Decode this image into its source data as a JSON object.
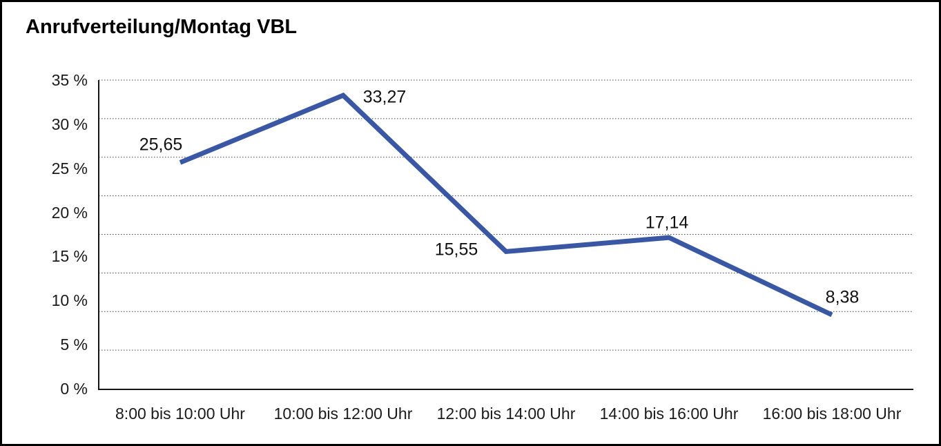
{
  "page": {
    "background": "#ffffff",
    "frame_border_color": "#000000"
  },
  "chart_data": {
    "type": "line",
    "title": "Anrufverteilung/Montag VBL",
    "categories": [
      "8:00 bis 10:00 Uhr",
      "10:00 bis 12:00 Uhr",
      "12:00 bis 14:00 Uhr",
      "14:00 bis 16:00 Uhr",
      "16:00 bis 18:00 Uhr"
    ],
    "values": [
      25.65,
      33.27,
      15.55,
      17.14,
      8.38
    ],
    "data_labels": [
      "25,65",
      "33,27",
      "15,55",
      "17,14",
      "8,38"
    ],
    "xlabel": "",
    "ylabel": "",
    "ylim": [
      0,
      35
    ],
    "y_ticks": [
      {
        "label": "35 %",
        "value": 35
      },
      {
        "label": "30 %",
        "value": 30
      },
      {
        "label": "25 %",
        "value": 25
      },
      {
        "label": "20 %",
        "value": 20
      },
      {
        "label": "15 %",
        "value": 15
      },
      {
        "label": "10 %",
        "value": 10
      },
      {
        "label": "5 %",
        "value": 5
      },
      {
        "label": "0 %",
        "value": 0
      }
    ],
    "grid": "horizontal-dotted",
    "grid_intervals": 8,
    "legend": "none",
    "line_color": "#3A57A4",
    "gridline_color": "#3f3f3f",
    "axis_color": "#141414",
    "text_color": "#111111"
  }
}
